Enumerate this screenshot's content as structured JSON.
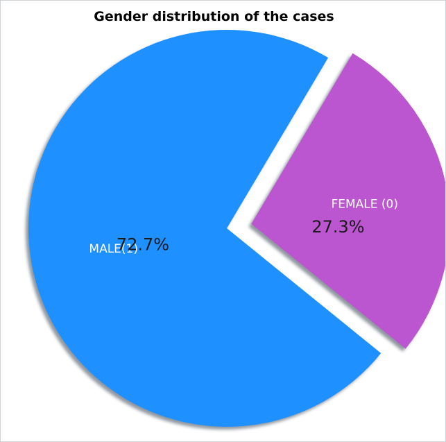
{
  "chart_data": {
    "type": "pie",
    "title": "Gender distribution of the cases",
    "slices": [
      {
        "name": "MALE(1)",
        "value": 72.7,
        "label": "72.7%",
        "color": "#1e90ff",
        "exploded": false
      },
      {
        "name": "FEMALE (0)",
        "value": 27.3,
        "label": "27.3%",
        "color": "#bb55d0",
        "exploded": true
      }
    ],
    "shadow": true
  }
}
